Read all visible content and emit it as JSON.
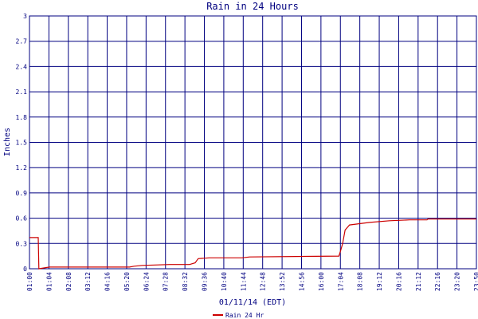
{
  "chart_data": {
    "type": "line",
    "title": "Rain in 24 Hours",
    "xlabel": "01/11/14 (EDT)",
    "ylabel": "Inches",
    "ylim": [
      0,
      3
    ],
    "yticks": [
      "0",
      "0.3",
      "0.6",
      "0.9",
      "1.2",
      "1.5",
      "1.8",
      "2.1",
      "2.4",
      "2.7",
      "3"
    ],
    "xticks": [
      "01:00",
      "01:04",
      "02:08",
      "03:12",
      "04:16",
      "05:20",
      "06:24",
      "07:28",
      "08:32",
      "09:36",
      "10:40",
      "11:44",
      "12:48",
      "13:52",
      "14:56",
      "16:00",
      "17:04",
      "18:08",
      "19:12",
      "20:16",
      "21:12",
      "22:16",
      "23:20",
      "23:50"
    ],
    "grid": true,
    "legend_position": "bottom",
    "series": [
      {
        "name": "Rain 24 Hr",
        "color": "#cc0000",
        "x": [
          "00:00",
          "00:28",
          "00:30",
          "00:48",
          "01:04",
          "05:20",
          "05:35",
          "06:00",
          "07:28",
          "08:32",
          "08:50",
          "09:00",
          "09:36",
          "11:20",
          "11:44",
          "16:30",
          "16:36",
          "16:42",
          "16:50",
          "17:04",
          "18:08",
          "19:12",
          "20:16",
          "21:12",
          "21:15",
          "23:50"
        ],
        "values": [
          0.37,
          0.37,
          0.0,
          0.01,
          0.02,
          0.02,
          0.03,
          0.04,
          0.05,
          0.05,
          0.07,
          0.12,
          0.13,
          0.13,
          0.14,
          0.15,
          0.22,
          0.3,
          0.46,
          0.52,
          0.55,
          0.57,
          0.58,
          0.58,
          0.59,
          0.59
        ]
      }
    ]
  }
}
